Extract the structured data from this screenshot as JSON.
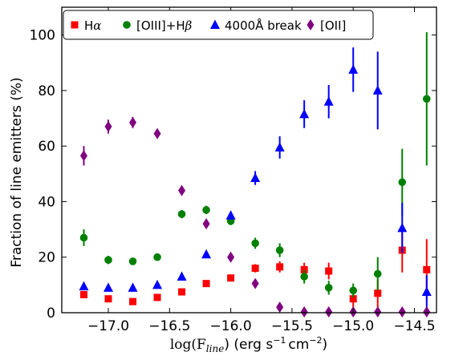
{
  "chart_data": {
    "type": "scatter",
    "xlabel": "log(F_line) (erg s^-1 cm^-2)",
    "xlabel_parts": {
      "log": "log(F",
      "sub": "line",
      "rest": ") (erg s",
      "sup1": "−1",
      "mid": "cm",
      "sup2": "−2",
      "end": ")"
    },
    "ylabel": "Fraction of line emitters (%)",
    "xlim": [
      -17.38,
      -14.32
    ],
    "ylim": [
      0,
      110
    ],
    "xticks": [
      -17.0,
      -16.5,
      -16.0,
      -15.5,
      -15.0,
      -14.5
    ],
    "xtick_labels": [
      "−17.0",
      "−16.5",
      "−16.0",
      "−15.5",
      "−15.0",
      "−14.5"
    ],
    "yticks": [
      0,
      20,
      40,
      60,
      80,
      100
    ],
    "ytick_labels": [
      "0",
      "20",
      "40",
      "60",
      "80",
      "100"
    ],
    "legend_position": "top",
    "series": [
      {
        "name": "Hα",
        "legend_label_base": "H",
        "legend_label_greek": "α",
        "color": "#ff0000",
        "marker": "square",
        "x": [
          -17.2,
          -17.0,
          -16.8,
          -16.6,
          -16.4,
          -16.2,
          -16.0,
          -15.8,
          -15.6,
          -15.4,
          -15.2,
          -15.0,
          -14.8,
          -14.6,
          -14.4
        ],
        "y": [
          6.5,
          5,
          4,
          5.5,
          7.5,
          10.5,
          12.5,
          16,
          16.5,
          15.5,
          15,
          5,
          7,
          22.5,
          15.5
        ],
        "err": [
          0.8,
          0.8,
          0.8,
          0.8,
          1,
          1,
          1,
          1.5,
          2,
          2.5,
          3,
          3,
          5,
          8,
          11
        ]
      },
      {
        "name": "[OIII]+Hβ",
        "legend_label_base": "[OIII]+H",
        "legend_label_greek": "β",
        "color": "#008000",
        "marker": "circle",
        "x": [
          -17.2,
          -17.0,
          -16.8,
          -16.6,
          -16.4,
          -16.2,
          -16.0,
          -15.8,
          -15.6,
          -15.4,
          -15.2,
          -15.0,
          -14.8,
          -14.6,
          -14.4
        ],
        "y": [
          27,
          19,
          18.5,
          20,
          35.5,
          37,
          33,
          25,
          22.5,
          13,
          9,
          8,
          14,
          47,
          77
        ],
        "err": [
          3,
          1.5,
          1,
          1,
          1.5,
          1.5,
          1.5,
          2,
          2.5,
          2.5,
          2.5,
          2.5,
          6,
          12,
          24
        ]
      },
      {
        "name": "4000Å break",
        "color": "#0000ff",
        "marker": "triangle",
        "x": [
          -17.2,
          -17.0,
          -16.8,
          -16.6,
          -16.4,
          -16.2,
          -16.0,
          -15.8,
          -15.6,
          -15.4,
          -15.2,
          -15.0,
          -14.8,
          -14.6,
          -14.4
        ],
        "y": [
          9.5,
          9,
          9,
          10,
          13,
          21,
          35,
          48.5,
          59.5,
          71.5,
          76,
          87.5,
          80,
          30.5,
          7.5
        ],
        "err": [
          0.8,
          0.8,
          0.8,
          0.8,
          1,
          1.2,
          1.5,
          2.5,
          4,
          5,
          6,
          8,
          14,
          9,
          6
        ]
      },
      {
        "name": "[OII]",
        "color": "#800080",
        "marker": "diamond",
        "x": [
          -17.2,
          -17.0,
          -16.8,
          -16.6,
          -16.4,
          -16.2,
          -16.0,
          -15.8,
          -15.6,
          -15.4,
          -15.2,
          -15.0,
          -14.8,
          -14.6,
          -14.4
        ],
        "y": [
          56.5,
          67,
          68.5,
          64.5,
          44,
          32,
          20,
          10.5,
          2,
          0.3,
          0.3,
          0.3,
          0.3,
          0.3,
          0.3
        ],
        "err": [
          3.5,
          2.5,
          2,
          1.5,
          1.5,
          1.5,
          1.5,
          1.5,
          1,
          0,
          0,
          0,
          0,
          0,
          0
        ]
      }
    ]
  }
}
